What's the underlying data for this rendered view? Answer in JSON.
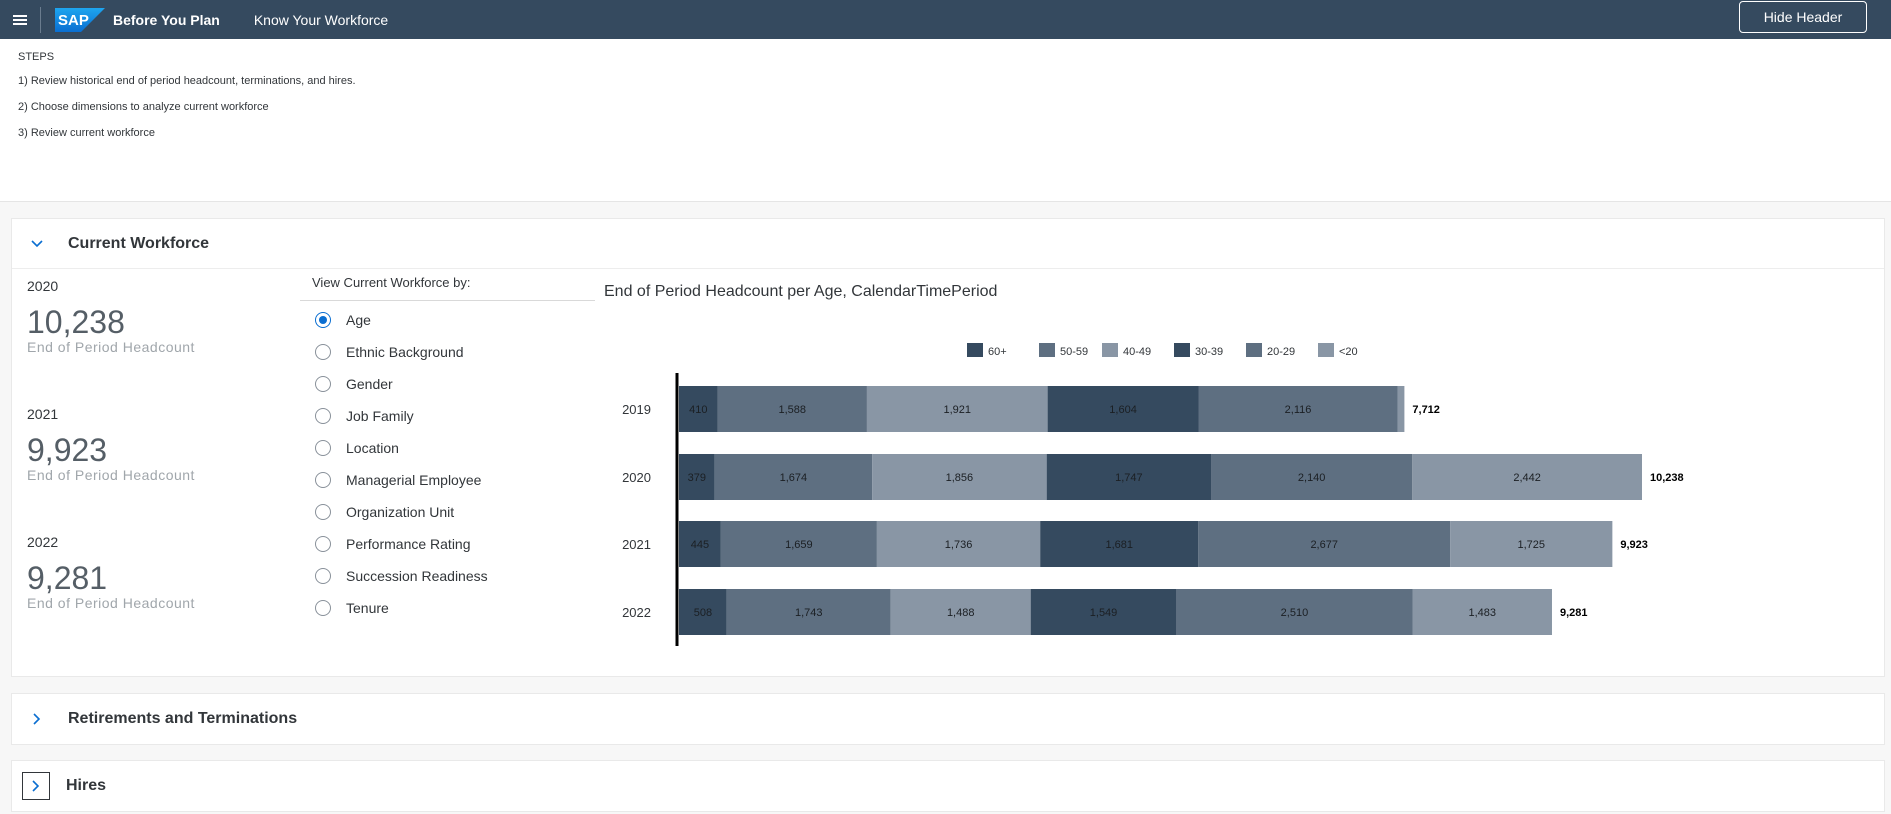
{
  "shell": {
    "logo_text": "SAP",
    "app_title": "Before You Plan",
    "sub_title": "Know Your Workforce",
    "hide_header_label": "Hide Header"
  },
  "steps": {
    "title": "STEPS",
    "items": [
      "1) Review historical end of period headcount, terminations, and hires.",
      "2) Choose dimensions to analyze current workforce",
      "3) Review current workforce"
    ]
  },
  "sections": {
    "current": {
      "title": "Current Workforce",
      "expanded": true
    },
    "retirements": {
      "title": "Retirements and Terminations",
      "expanded": false
    },
    "hires": {
      "title": "Hires",
      "expanded": false
    }
  },
  "kpis": [
    {
      "year": "2020",
      "value": "10,238",
      "label": "End of Period Headcount"
    },
    {
      "year": "2021",
      "value": "9,923",
      "label": "End of Period Headcount"
    },
    {
      "year": "2022",
      "value": "9,281",
      "label": "End of Period Headcount"
    }
  ],
  "view_by": {
    "label": "View Current Workforce by:",
    "selected": "Age",
    "options": [
      "Age",
      "Ethnic Background",
      "Gender",
      "Job Family",
      "Location",
      "Managerial Employee",
      "Organization Unit",
      "Performance Rating",
      "Succession Readiness",
      "Tenure"
    ]
  },
  "chart_data": {
    "type": "bar",
    "orientation": "horizontal",
    "stacked": true,
    "title": "End of Period Headcount per Age, CalendarTimePeriod",
    "categories": [
      "2019",
      "2020",
      "2021",
      "2022"
    ],
    "legend_position": "top",
    "series": [
      {
        "name": "60+",
        "color": "#354a5f",
        "values": [
          410,
          379,
          445,
          508
        ],
        "labels": [
          "410",
          "379",
          "445",
          "508"
        ]
      },
      {
        "name": "50-59",
        "color": "#5e6f81",
        "values": [
          1588,
          1674,
          1659,
          1743
        ],
        "labels": [
          "1,588",
          "1,674",
          "1,659",
          "1,743"
        ]
      },
      {
        "name": "40-49",
        "color": "#8996a5",
        "values": [
          1921,
          1856,
          1736,
          1488
        ],
        "labels": [
          "1,921",
          "1,856",
          "1,736",
          "1,488"
        ]
      },
      {
        "name": "30-39",
        "color": "#354a5f",
        "values": [
          1604,
          1747,
          1681,
          1549
        ],
        "labels": [
          "1,604",
          "1,747",
          "1,681",
          "1,549"
        ]
      },
      {
        "name": "20-29",
        "color": "#5e6f81",
        "values": [
          2116,
          2140,
          2677,
          2510
        ],
        "labels": [
          "2,116",
          "2,140",
          "2,677",
          "2,510"
        ]
      },
      {
        "name": "<20",
        "color": "#8996a5",
        "values": [
          73,
          2442,
          1725,
          1483
        ],
        "labels": [
          "",
          "2,442",
          "1,725",
          "1,483"
        ]
      }
    ],
    "totals": [
      "7,712",
      "10,238",
      "9,923",
      "9,281"
    ],
    "total_values": [
      7712,
      10238,
      9923,
      9281
    ],
    "xlim": [
      0,
      10238
    ]
  }
}
